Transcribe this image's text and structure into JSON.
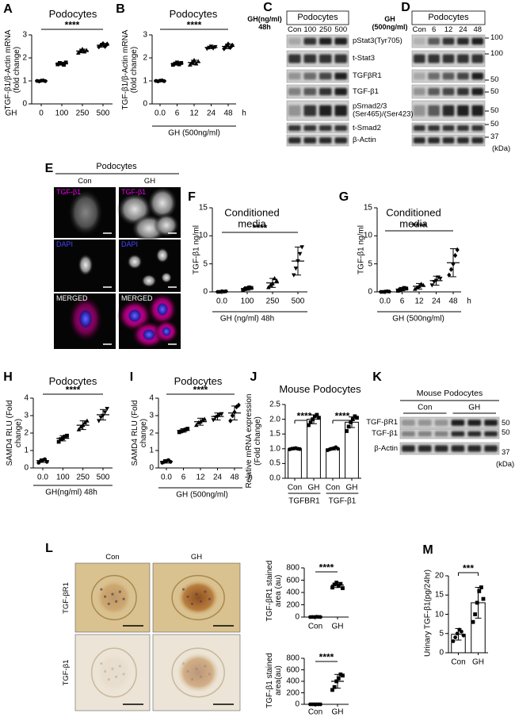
{
  "chart_data": [
    {
      "panel": "A",
      "type": "scatter",
      "title": "Podocytes",
      "ylabel": "TGF-β1/β-Actin mRNA (fold change)",
      "xlabel": "GH",
      "categories": [
        "0",
        "100",
        "250",
        "500"
      ],
      "values": [
        1,
        1.75,
        2.3,
        2.55
      ],
      "errors": [
        0.03,
        0.05,
        0.08,
        0.08
      ],
      "points": [
        [
          1.0,
          0.98,
          1.01,
          1.02,
          0.99
        ],
        [
          1.72,
          1.78,
          1.75,
          1.7,
          1.8
        ],
        [
          2.22,
          2.3,
          2.38,
          2.27,
          2.33
        ],
        [
          2.48,
          2.55,
          2.62,
          2.5,
          2.6
        ]
      ],
      "markers": [
        "circle",
        "square",
        "triangle",
        "diamond"
      ],
      "ylim": [
        0,
        3
      ],
      "yticks": [
        0,
        1,
        2,
        3
      ],
      "significance": "****"
    },
    {
      "panel": "B",
      "type": "scatter",
      "title": "Podocytes",
      "ylabel": "TGF-β1/β-Actin mRNA (fold change)",
      "xlabel": "GH (500ng/ml)",
      "x_unit": "h",
      "categories": [
        "0.0",
        "6",
        "12",
        "24",
        "48"
      ],
      "values": [
        1,
        1.75,
        1.8,
        2.45,
        2.5
      ],
      "errors": [
        0.03,
        0.05,
        0.1,
        0.05,
        0.1
      ],
      "points": [
        [
          1.0,
          0.98,
          1.01,
          1.02,
          0.99
        ],
        [
          1.7,
          1.75,
          1.8,
          1.72,
          1.78
        ],
        [
          1.7,
          1.8,
          1.9,
          1.75,
          1.85
        ],
        [
          2.4,
          2.45,
          2.5,
          2.42,
          2.48
        ],
        [
          2.4,
          2.5,
          2.6,
          2.45,
          2.55
        ]
      ],
      "markers": [
        "circle",
        "square",
        "triangle",
        "inverted-triangle",
        "diamond"
      ],
      "ylim": [
        0,
        3
      ],
      "yticks": [
        0,
        1,
        2,
        3
      ],
      "significance": "****"
    },
    {
      "panel": "F",
      "type": "scatter",
      "title": "Conditioned media",
      "ylabel": "TGF-β1 ng/ml",
      "xlabel": "GH (ng/ml) 48h",
      "categories": [
        "0.0",
        "100",
        "250",
        "500"
      ],
      "values": [
        0.05,
        0.6,
        1.6,
        5.5
      ],
      "errors": [
        0.05,
        0.3,
        0.8,
        2.5
      ],
      "points": [
        [
          0,
          0,
          0.1,
          0.05,
          0.1
        ],
        [
          0.3,
          0.5,
          0.6,
          0.8,
          0.7
        ],
        [
          0.8,
          1.2,
          1.5,
          2.4,
          2.0
        ],
        [
          3.0,
          4.2,
          5.5,
          6.8,
          8.0
        ]
      ],
      "markers": [
        "circle",
        "square",
        "triangle",
        "inverted-triangle"
      ],
      "ylim": [
        0,
        15
      ],
      "yticks": [
        0,
        5,
        10,
        15
      ],
      "significance": "****"
    },
    {
      "panel": "G",
      "type": "scatter",
      "title": "Conditioned media",
      "ylabel": "TGF-β1 ng/ml",
      "xlabel": "GH (500ng/ml)",
      "x_unit": "h",
      "categories": [
        "0.0",
        "6",
        "12",
        "24",
        "48"
      ],
      "values": [
        0.05,
        0.5,
        1.0,
        2.0,
        5.2
      ],
      "errors": [
        0.05,
        0.3,
        0.5,
        0.8,
        2.5
      ],
      "points": [
        [
          0,
          0,
          0.05,
          0.1,
          0.05
        ],
        [
          0.2,
          0.4,
          0.5,
          0.7,
          0.6
        ],
        [
          0.5,
          0.8,
          1.0,
          1.4,
          1.2
        ],
        [
          1.2,
          1.8,
          2.0,
          2.6,
          2.4
        ],
        [
          3.0,
          4.0,
          5.0,
          6.5,
          7.5
        ]
      ],
      "markers": [
        "circle",
        "square",
        "triangle",
        "inverted-triangle",
        "diamond"
      ],
      "ylim": [
        0,
        15
      ],
      "yticks": [
        0,
        5,
        10,
        15
      ],
      "significance": "****"
    },
    {
      "panel": "H",
      "type": "scatter",
      "title": "Podocytes",
      "ylabel": "SAMD4 RLU (Fold change)",
      "xlabel": "GH(ng/ml) 48h",
      "categories": [
        "0.0",
        "100",
        "250",
        "500"
      ],
      "values": [
        0.42,
        1.7,
        2.45,
        3.05
      ],
      "errors": [
        0.1,
        0.15,
        0.25,
        0.3
      ],
      "points": [
        [
          0.3,
          0.4,
          0.45,
          0.5,
          0.35
        ],
        [
          1.5,
          1.65,
          1.7,
          1.8,
          1.85
        ],
        [
          2.2,
          2.35,
          2.45,
          2.6,
          2.7
        ],
        [
          2.7,
          2.9,
          3.0,
          3.2,
          3.4
        ]
      ],
      "markers": [
        "circle",
        "square",
        "triangle",
        "inverted-triangle"
      ],
      "ylim": [
        0,
        4
      ],
      "yticks": [
        0,
        1,
        2,
        3,
        4
      ],
      "significance": "****"
    },
    {
      "panel": "I",
      "type": "scatter",
      "title": "Podocytes",
      "ylabel": "SAMD4 RLU (Fold change)",
      "xlabel": "GH (500ng/ml)",
      "x_unit": "h",
      "categories": [
        "0.0",
        "6",
        "12",
        "24",
        "48"
      ],
      "values": [
        0.38,
        2.15,
        2.65,
        2.95,
        3.15
      ],
      "errors": [
        0.1,
        0.1,
        0.2,
        0.2,
        0.4
      ],
      "points": [
        [
          0.3,
          0.35,
          0.4,
          0.45,
          0.35
        ],
        [
          2.05,
          2.1,
          2.15,
          2.2,
          2.25
        ],
        [
          2.45,
          2.6,
          2.65,
          2.75,
          2.8
        ],
        [
          2.75,
          2.9,
          2.95,
          3.05,
          3.1
        ],
        [
          2.7,
          3.0,
          3.2,
          3.5,
          3.6
        ]
      ],
      "markers": [
        "circle",
        "square",
        "triangle",
        "inverted-triangle",
        "diamond"
      ],
      "ylim": [
        0,
        4
      ],
      "yticks": [
        0,
        1,
        2,
        3,
        4
      ],
      "significance": "****"
    },
    {
      "panel": "J",
      "type": "bar",
      "title": "Mouse Podocytes",
      "ylabel": "Relative mRNA expression (Fold change)",
      "categories": [
        "Con",
        "GH",
        "Con",
        "GH"
      ],
      "groups": [
        "TGFBR1",
        "TGF-β1"
      ],
      "values": [
        1.0,
        2.0,
        1.0,
        1.9
      ],
      "errors": [
        0.03,
        0.15,
        0.04,
        0.18
      ],
      "points": [
        [
          0.98,
          1.0,
          1.01,
          1.02,
          1.0,
          0.99
        ],
        [
          1.8,
          1.9,
          2.0,
          2.1,
          2.15,
          2.05
        ],
        [
          0.95,
          0.98,
          1.0,
          1.02,
          1.05,
          1.0
        ],
        [
          1.6,
          1.75,
          1.9,
          2.0,
          2.1,
          2.05
        ]
      ],
      "markers": [
        "circle",
        "square",
        "circle",
        "square"
      ],
      "ylim": [
        0,
        2.5
      ],
      "yticks": [
        {
          "value": 0,
          "label": "0.0"
        },
        0.5,
        {
          "value": 1,
          "label": "1.0"
        },
        1.5,
        {
          "value": 2,
          "label": "2.0"
        },
        2.5
      ],
      "significance": "****"
    },
    {
      "type": "scatter",
      "ylabel": "TGF-βR1 stained area (au)",
      "categories": [
        "Con",
        "GH"
      ],
      "values": [
        0,
        520
      ],
      "errors": [
        5,
        40
      ],
      "points": [
        [
          0,
          2,
          0,
          5,
          3,
          1
        ],
        [
          480,
          530,
          560,
          510,
          540,
          470
        ]
      ],
      "markers": [
        "circle",
        "square"
      ],
      "ylim": [
        0,
        800
      ],
      "yticks": [
        0,
        200,
        400,
        600,
        800
      ],
      "significance": "****"
    },
    {
      "type": "scatter",
      "ylabel": "TGF-β1 stained area(au)",
      "categories": [
        "Con",
        "GH"
      ],
      "values": [
        0,
        400
      ],
      "errors": [
        0,
        120
      ],
      "points": [
        [
          0,
          0,
          0,
          0,
          0,
          0
        ],
        [
          250,
          300,
          400,
          450,
          520,
          500
        ]
      ],
      "markers": [
        "circle",
        "square"
      ],
      "ylim": [
        0,
        800
      ],
      "yticks": [
        0,
        200,
        400,
        600,
        800
      ],
      "significance": "****"
    },
    {
      "panel": "M",
      "type": "bar",
      "ylabel": "Urinary TGF-β1(pg/24hr)",
      "categories": [
        "Con",
        "GH"
      ],
      "values": [
        4.8,
        13
      ],
      "errors": [
        1.5,
        4
      ],
      "points": [
        [
          3,
          4,
          5,
          6,
          5.5,
          4.5
        ],
        [
          8,
          10,
          13,
          16,
          17,
          14
        ]
      ],
      "markers": [
        "circle",
        "square"
      ],
      "ylim": [
        0,
        20
      ],
      "yticks": [
        0,
        5,
        10,
        15,
        20
      ],
      "significance": "***"
    }
  ],
  "blots": {
    "C": {
      "panel": "C",
      "title": "Podocytes",
      "treatment": "GH(ng/ml) 48h",
      "lanes": [
        "Con",
        "100",
        "250",
        "500"
      ]
    },
    "D": {
      "panel": "D",
      "title": "Podocytes",
      "treatment": "GH (500ng/ml)",
      "lanes": [
        "Con",
        "6",
        "12",
        "24",
        "48"
      ]
    },
    "row_labels": [
      "pStat3(Tyr705)",
      "t-Stat3",
      "TGFβR1",
      "TGF-β1",
      "pSmad2/3 (Ser465)/(Ser423)",
      "t-Smad2",
      "β-Actin"
    ],
    "mw": [
      100,
      100,
      50,
      50,
      50,
      50,
      37
    ],
    "mw_unit": "(kDa)",
    "K": {
      "panel": "K",
      "title": "Mouse Podocytes",
      "groups": [
        "Con",
        "GH"
      ],
      "row_labels": [
        "TGF-βR1",
        "TGF-β1",
        "β-Actin"
      ],
      "mw": [
        50,
        50,
        37
      ],
      "mw_unit": "(kDa)"
    }
  },
  "images": {
    "E": {
      "panel": "E",
      "title": "Podocytes",
      "columns": [
        "Con",
        "GH"
      ],
      "channels": [
        "TGF-β1",
        "DAPI",
        "MERGED"
      ]
    },
    "L": {
      "panel": "L",
      "columns": [
        "Con",
        "GH"
      ],
      "rows": [
        "TGF-βR1",
        "TGF-β1"
      ]
    }
  }
}
